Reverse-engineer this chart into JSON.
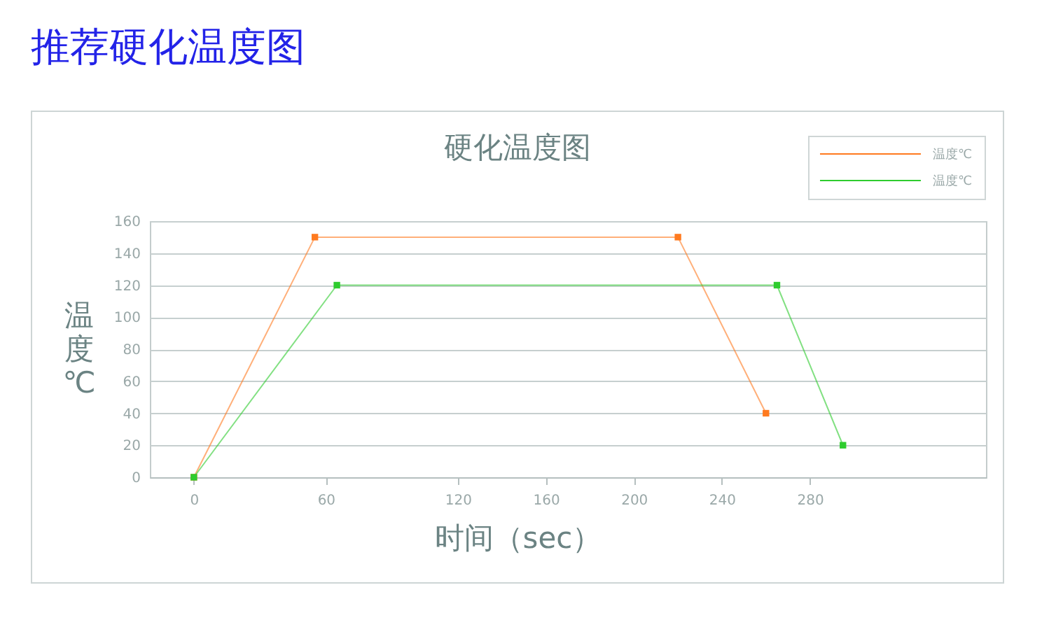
{
  "chart_data": {
    "type": "line",
    "title": "推荐硬化温度图",
    "subtitle": "硬化温度图",
    "xlabel": "时间（sec）",
    "ylabel": "温度℃",
    "series": [
      {
        "name": "温度℃",
        "color": "#ff7a1f",
        "x": [
          0,
          55,
          220,
          260
        ],
        "values": [
          0,
          150,
          150,
          40
        ]
      },
      {
        "name": "温度℃",
        "color": "#2ecc2e",
        "x": [
          0,
          65,
          265,
          295
        ],
        "values": [
          0,
          120,
          120,
          20
        ]
      }
    ],
    "xlim": [
      -20,
      360
    ],
    "xticks": [
      0,
      60,
      120,
      160,
      200,
      240,
      280
    ],
    "ylim": [
      0,
      160
    ],
    "yticks": [
      0,
      20,
      40,
      60,
      80,
      100,
      120,
      140,
      160
    ],
    "grid": "y",
    "legend": "top right",
    "marker": "square"
  }
}
